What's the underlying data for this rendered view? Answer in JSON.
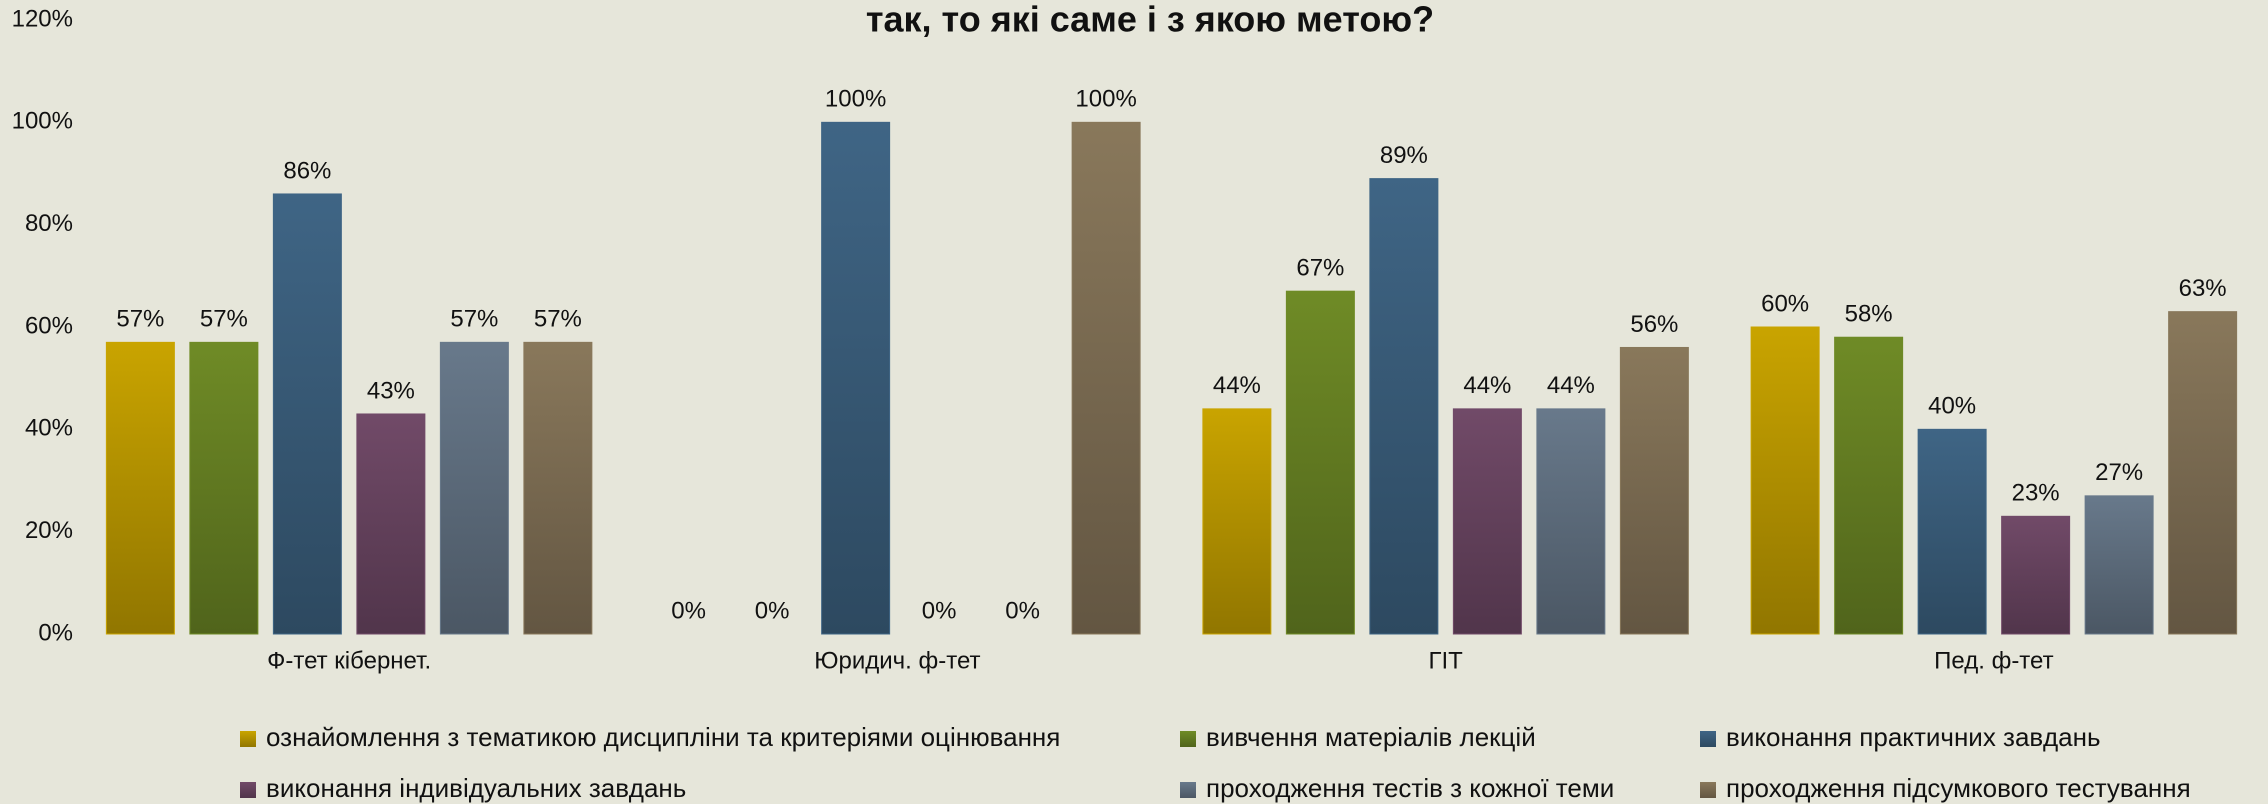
{
  "chart_data": {
    "type": "bar",
    "title": "так, то які саме і з якою метою?",
    "categories": [
      "Ф-тет кібернет.",
      "Юридич. ф-тет",
      "ГІТ",
      "Пед. ф-тет"
    ],
    "series": [
      {
        "name": "ознайомлення з тематикою дисципліни та критеріями оцінювання",
        "color": "#c9a400",
        "values": [
          57,
          0,
          44,
          60
        ],
        "value_labels": [
          "57%",
          "0%",
          "44%",
          "60%"
        ]
      },
      {
        "name": "вивчення матеріалів лекцій",
        "color": "#6f8b26",
        "values": [
          57,
          0,
          67,
          58
        ],
        "value_labels": [
          "57%",
          "0%",
          "67%",
          "58%"
        ]
      },
      {
        "name": "виконання практичних завдань",
        "color": "#3f6585",
        "values": [
          86,
          100,
          89,
          40
        ],
        "value_labels": [
          "86%",
          "100%",
          "89%",
          "40%"
        ]
      },
      {
        "name": "виконання індивідуальних завдань",
        "color": "#714a68",
        "values": [
          43,
          0,
          44,
          23
        ],
        "value_labels": [
          "43%",
          "0%",
          "44%",
          "23%"
        ]
      },
      {
        "name": "проходження тестів з кожної теми",
        "color": "#68798b",
        "values": [
          57,
          0,
          44,
          27
        ],
        "value_labels": [
          "57%",
          "0%",
          "44%",
          "27%"
        ]
      },
      {
        "name": "проходження підсумкового тестування",
        "color": "#89785b",
        "values": [
          57,
          100,
          56,
          63
        ],
        "value_labels": [
          "57%",
          "100%",
          "56%",
          "63%"
        ]
      }
    ],
    "ylim": [
      0,
      120
    ],
    "yticks": [
      {
        "value": 0,
        "label": "0%"
      },
      {
        "value": 20,
        "label": "20%"
      },
      {
        "value": 40,
        "label": "40%"
      },
      {
        "value": 60,
        "label": "60%"
      },
      {
        "value": 80,
        "label": "80%"
      },
      {
        "value": 100,
        "label": "100%"
      },
      {
        "value": 120,
        "label": "120%"
      }
    ],
    "grid": false
  }
}
